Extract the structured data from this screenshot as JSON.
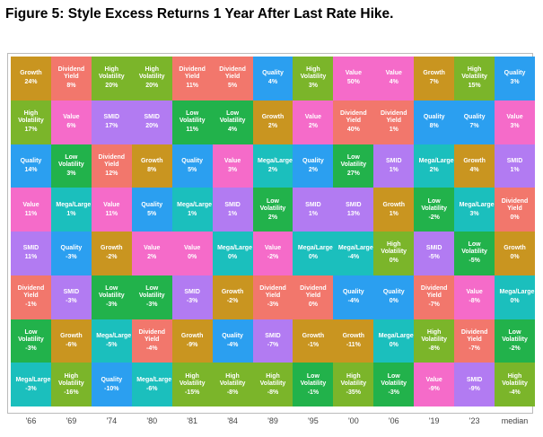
{
  "title": "Figure 5: Style Excess Returns 1 Year After Last Rate Hike.",
  "colors": {
    "Growth": "#c99520",
    "Dividend Yield": "#f2776c",
    "High Volatility": "#7bb52a",
    "Quality": "#2b9ff0",
    "Value": "#f56bc9",
    "SMID": "#b27bf2",
    "Low Volatility": "#22b24b",
    "Mega/Large": "#1bbfbd"
  },
  "table": {
    "columns": [
      "'66",
      "'69",
      "'74",
      "'80",
      "'81",
      "'84",
      "'89",
      "'95",
      "'00",
      "'06",
      "'19",
      "'23",
      "median"
    ],
    "rows": [
      [
        {
          "style": "Growth",
          "value": "24%"
        },
        {
          "style": "Dividend Yield",
          "value": "8%"
        },
        {
          "style": "High Volatility",
          "value": "20%"
        },
        {
          "style": "High Volatility",
          "value": "20%"
        },
        {
          "style": "Dividend Yield",
          "value": "11%"
        },
        {
          "style": "Dividend Yield",
          "value": "5%"
        },
        {
          "style": "Quality",
          "value": "4%"
        },
        {
          "style": "High Volatility",
          "value": "3%"
        },
        {
          "style": "Value",
          "value": "50%"
        },
        {
          "style": "Value",
          "value": "4%"
        },
        {
          "style": "Growth",
          "value": "7%"
        },
        {
          "style": "High Volatility",
          "value": "15%"
        },
        {
          "style": "Quality",
          "value": "3%"
        }
      ],
      [
        {
          "style": "High Volatility",
          "value": "17%"
        },
        {
          "style": "Value",
          "value": "6%"
        },
        {
          "style": "SMID",
          "value": "17%"
        },
        {
          "style": "SMID",
          "value": "20%"
        },
        {
          "style": "Low Volatility",
          "value": "11%"
        },
        {
          "style": "Low Volatility",
          "value": "4%"
        },
        {
          "style": "Growth",
          "value": "2%"
        },
        {
          "style": "Value",
          "value": "2%"
        },
        {
          "style": "Dividend Yield",
          "value": "40%"
        },
        {
          "style": "Dividend Yield",
          "value": "1%"
        },
        {
          "style": "Quality",
          "value": "8%"
        },
        {
          "style": "Quality",
          "value": "7%"
        },
        {
          "style": "Value",
          "value": "3%"
        }
      ],
      [
        {
          "style": "Quality",
          "value": "14%"
        },
        {
          "style": "Low Volatility",
          "value": "3%"
        },
        {
          "style": "Dividend Yield",
          "value": "12%"
        },
        {
          "style": "Growth",
          "value": "8%"
        },
        {
          "style": "Quality",
          "value": "5%"
        },
        {
          "style": "Value",
          "value": "3%"
        },
        {
          "style": "Mega/Large",
          "value": "2%"
        },
        {
          "style": "Quality",
          "value": "2%"
        },
        {
          "style": "Low Volatility",
          "value": "27%"
        },
        {
          "style": "SMID",
          "value": "1%"
        },
        {
          "style": "Mega/Large",
          "value": "2%"
        },
        {
          "style": "Growth",
          "value": "4%"
        },
        {
          "style": "SMID",
          "value": "1%"
        }
      ],
      [
        {
          "style": "Value",
          "value": "11%"
        },
        {
          "style": "Mega/Large",
          "value": "1%"
        },
        {
          "style": "Value",
          "value": "11%"
        },
        {
          "style": "Quality",
          "value": "5%"
        },
        {
          "style": "Mega/Large",
          "value": "1%"
        },
        {
          "style": "SMID",
          "value": "1%"
        },
        {
          "style": "Low Volatility",
          "value": "2%"
        },
        {
          "style": "SMID",
          "value": "1%"
        },
        {
          "style": "SMID",
          "value": "13%"
        },
        {
          "style": "Growth",
          "value": "1%"
        },
        {
          "style": "Low Volatility",
          "value": "-2%"
        },
        {
          "style": "Mega/Large",
          "value": "3%"
        },
        {
          "style": "Dividend Yield",
          "value": "0%"
        }
      ],
      [
        {
          "style": "SMID",
          "value": "11%"
        },
        {
          "style": "Quality",
          "value": "-3%"
        },
        {
          "style": "Growth",
          "value": "-2%"
        },
        {
          "style": "Value",
          "value": "2%"
        },
        {
          "style": "Value",
          "value": "0%"
        },
        {
          "style": "Mega/Large",
          "value": "0%"
        },
        {
          "style": "Value",
          "value": "-2%"
        },
        {
          "style": "Mega/Large",
          "value": "0%"
        },
        {
          "style": "Mega/Large",
          "value": "-4%"
        },
        {
          "style": "High Volatility",
          "value": "0%"
        },
        {
          "style": "SMID",
          "value": "-5%"
        },
        {
          "style": "Low Volatility",
          "value": "-5%"
        },
        {
          "style": "Growth",
          "value": "0%"
        }
      ],
      [
        {
          "style": "Dividend Yield",
          "value": "-1%"
        },
        {
          "style": "SMID",
          "value": "-3%"
        },
        {
          "style": "Low Volatility",
          "value": "-3%"
        },
        {
          "style": "Low Volatility",
          "value": "-3%"
        },
        {
          "style": "SMID",
          "value": "-3%"
        },
        {
          "style": "Growth",
          "value": "-2%"
        },
        {
          "style": "Dividend Yield",
          "value": "-3%"
        },
        {
          "style": "Dividend Yield",
          "value": "0%"
        },
        {
          "style": "Quality",
          "value": "-4%"
        },
        {
          "style": "Quality",
          "value": "0%"
        },
        {
          "style": "Dividend Yield",
          "value": "-7%"
        },
        {
          "style": "Value",
          "value": "-8%"
        },
        {
          "style": "Mega/Large",
          "value": "0%"
        }
      ],
      [
        {
          "style": "Low Volatility",
          "value": "-3%"
        },
        {
          "style": "Growth",
          "value": "-6%"
        },
        {
          "style": "Mega/Large",
          "value": "-5%"
        },
        {
          "style": "Dividend Yield",
          "value": "-4%"
        },
        {
          "style": "Growth",
          "value": "-9%"
        },
        {
          "style": "Quality",
          "value": "-4%"
        },
        {
          "style": "SMID",
          "value": "-7%"
        },
        {
          "style": "Growth",
          "value": "-1%"
        },
        {
          "style": "Growth",
          "value": "-11%"
        },
        {
          "style": "Mega/Large",
          "value": "0%"
        },
        {
          "style": "High Volatility",
          "value": "-8%"
        },
        {
          "style": "Dividend Yield",
          "value": "-7%"
        },
        {
          "style": "Low Volatility",
          "value": "-2%"
        }
      ],
      [
        {
          "style": "Mega/Large",
          "value": "-3%"
        },
        {
          "style": "High Volatility",
          "value": "-16%"
        },
        {
          "style": "Quality",
          "value": "-10%"
        },
        {
          "style": "Mega/Large",
          "value": "-6%"
        },
        {
          "style": "High Volatility",
          "value": "-15%"
        },
        {
          "style": "High Volatility",
          "value": "-8%"
        },
        {
          "style": "High Volatility",
          "value": "-8%"
        },
        {
          "style": "Low Volatility",
          "value": "-1%"
        },
        {
          "style": "High Volatility",
          "value": "-35%"
        },
        {
          "style": "Low Volatility",
          "value": "-3%"
        },
        {
          "style": "Value",
          "value": "-9%"
        },
        {
          "style": "SMID",
          "value": "-9%"
        },
        {
          "style": "High Volatility",
          "value": "-4%"
        }
      ]
    ]
  }
}
